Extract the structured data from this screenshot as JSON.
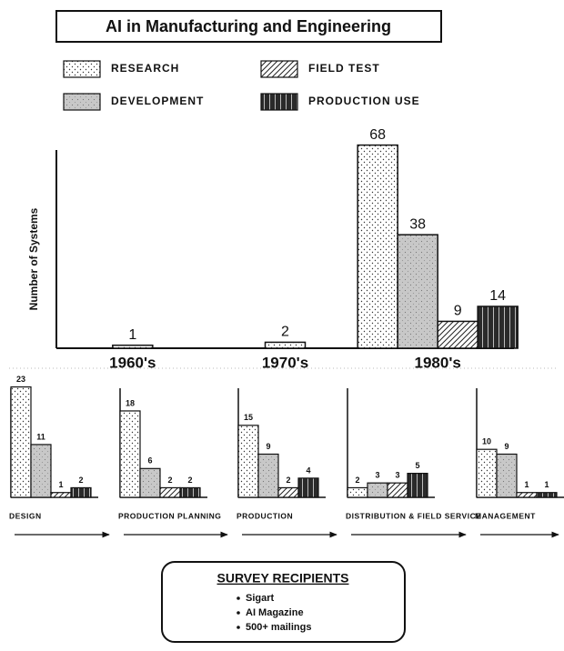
{
  "chart_data": [
    {
      "type": "bar",
      "title": "AI in Manufacturing and Engineering",
      "y_label": "Number of Systems",
      "categories": [
        "1960's",
        "1970's",
        "1980's"
      ],
      "series": [
        {
          "name": "RESEARCH",
          "color": "#ffffff",
          "values": [
            1,
            2,
            68
          ]
        },
        {
          "name": "DEVELOPMENT",
          "color": "#c8c8c8",
          "values": [
            null,
            null,
            38
          ]
        },
        {
          "name": "FIELD TEST",
          "color": "#ffffff",
          "values": [
            null,
            null,
            9
          ]
        },
        {
          "name": "PRODUCTION USE",
          "color": "#2a2a2a",
          "values": [
            null,
            null,
            14
          ]
        }
      ],
      "ylim": [
        0,
        70
      ]
    },
    {
      "type": "bar",
      "categories": [
        "DESIGN",
        "PRODUCTION PLANNING",
        "PRODUCTION",
        "DISTRIBUTION & FIELD SERVICE",
        "MANAGEMENT"
      ],
      "series": [
        {
          "values": [
            23,
            18,
            15,
            2,
            10
          ]
        },
        {
          "values": [
            11,
            6,
            9,
            3,
            9
          ]
        },
        {
          "values": [
            1,
            2,
            2,
            3,
            1
          ]
        },
        {
          "values": [
            2,
            2,
            4,
            5,
            1
          ]
        }
      ],
      "ylim": [
        0,
        25
      ]
    }
  ],
  "note": {
    "title": "SURVEY RECIPIENTS",
    "items": [
      "Sigart",
      "AI Magazine",
      "500+ mailings"
    ]
  }
}
